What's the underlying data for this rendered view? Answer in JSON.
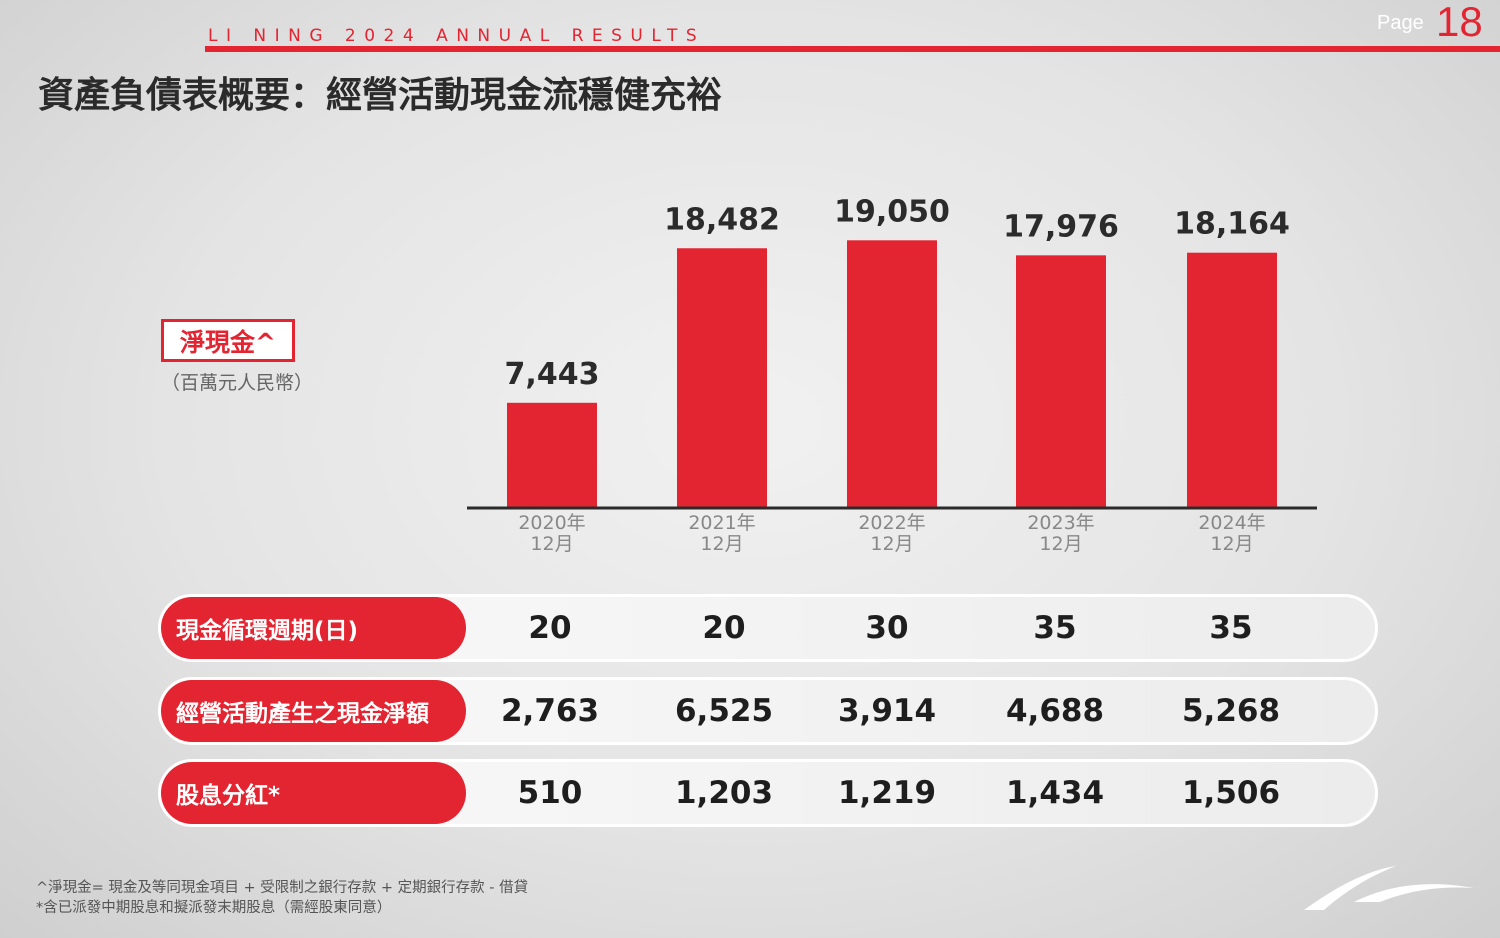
{
  "header": {
    "brand": "LI NING 2024 ANNUAL RESULTS",
    "page_label": "Page",
    "page_number": "18"
  },
  "title": "資產負債表概要：經營活動現金流穩健充裕",
  "metric_label": "淨現金^",
  "unit_label": "（百萬元人民幣）",
  "colors": {
    "accent": "#e32431",
    "axis": "#2b2b2b"
  },
  "chart_data": {
    "type": "bar",
    "categories": [
      [
        "2020年",
        "12月"
      ],
      [
        "2021年",
        "12月"
      ],
      [
        "2022年",
        "12月"
      ],
      [
        "2023年",
        "12月"
      ],
      [
        "2024年",
        "12月"
      ]
    ],
    "values": [
      7443,
      18482,
      19050,
      17976,
      18164
    ],
    "value_labels": [
      "7,443",
      "18,482",
      "19,050",
      "17,976",
      "18,164"
    ],
    "ylim": [
      0,
      19000
    ]
  },
  "table": {
    "rows": [
      {
        "label": "現金循環週期(日)",
        "values": [
          "20",
          "20",
          "30",
          "35",
          "35"
        ]
      },
      {
        "label": "經營活動產生之現金淨額",
        "values": [
          "2,763",
          "6,525",
          "3,914",
          "4,688",
          "5,268"
        ]
      },
      {
        "label": "股息分紅*",
        "values": [
          "510",
          "1,203",
          "1,219",
          "1,434",
          "1,506"
        ]
      }
    ]
  },
  "footnotes": [
    "^淨現金= 現金及等同現金項目 + 受限制之銀行存款 + 定期銀行存款 - 借貸",
    "*含已派發中期股息和擬派發末期股息（需經股東同意）"
  ],
  "logo": "li-ning-swoosh-logo"
}
